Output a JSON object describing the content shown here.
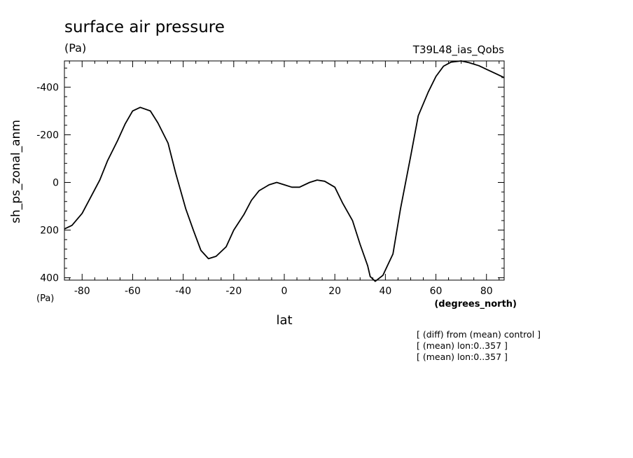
{
  "chart_data": {
    "type": "line",
    "title": "surface air pressure",
    "units_label": "(Pa)",
    "experiment": "T39L48_ias_Qobs",
    "ylabel": "sh_ps_zonal_anm",
    "y_unit": "(Pa)",
    "xlabel": "lat",
    "x_unit": "(degrees_north)",
    "xlim": [
      -87,
      87
    ],
    "ylim": [
      410,
      -510
    ],
    "y_inverted": true,
    "x_ticks": [
      -80,
      -60,
      -40,
      -20,
      0,
      20,
      40,
      60,
      80
    ],
    "x_tick_labels": [
      "-80",
      "-60",
      "-40",
      "-20",
      "0",
      "20",
      "40",
      "60",
      "80"
    ],
    "y_ticks": [
      -400,
      -200,
      0,
      200,
      400
    ],
    "y_tick_labels": [
      "-400",
      "-200",
      "0",
      "200",
      "400"
    ],
    "grid": false,
    "notes": [
      "[ (diff) from (mean) control ]",
      "[ (mean) lon:0..357 ]",
      "[ (mean) lon:0..357 ]"
    ],
    "series": [
      {
        "x": [
          -87,
          -84,
          -80,
          -77,
          -73,
          -70,
          -66,
          -63,
          -60,
          -57,
          -53,
          -50,
          -46,
          -43,
          -39,
          -36,
          -33,
          -30,
          -27,
          -23,
          -20,
          -16,
          -13,
          -10,
          -6,
          -3,
          0,
          3,
          6,
          10,
          13,
          16,
          20,
          23,
          27,
          30,
          33,
          34,
          36,
          39,
          43,
          46,
          50,
          53,
          57,
          60,
          63,
          66,
          70,
          73,
          77,
          80,
          84,
          87
        ],
        "y": [
          195,
          180,
          130,
          70,
          -10,
          -90,
          -175,
          -245,
          -300,
          -315,
          -300,
          -250,
          -165,
          -40,
          110,
          200,
          285,
          320,
          310,
          270,
          200,
          135,
          75,
          35,
          10,
          0,
          10,
          20,
          20,
          0,
          -10,
          -5,
          20,
          85,
          160,
          260,
          350,
          395,
          415,
          390,
          300,
          110,
          -110,
          -280,
          -380,
          -445,
          -488,
          -505,
          -510,
          -503,
          -490,
          -475,
          -455,
          -440
        ]
      }
    ]
  }
}
